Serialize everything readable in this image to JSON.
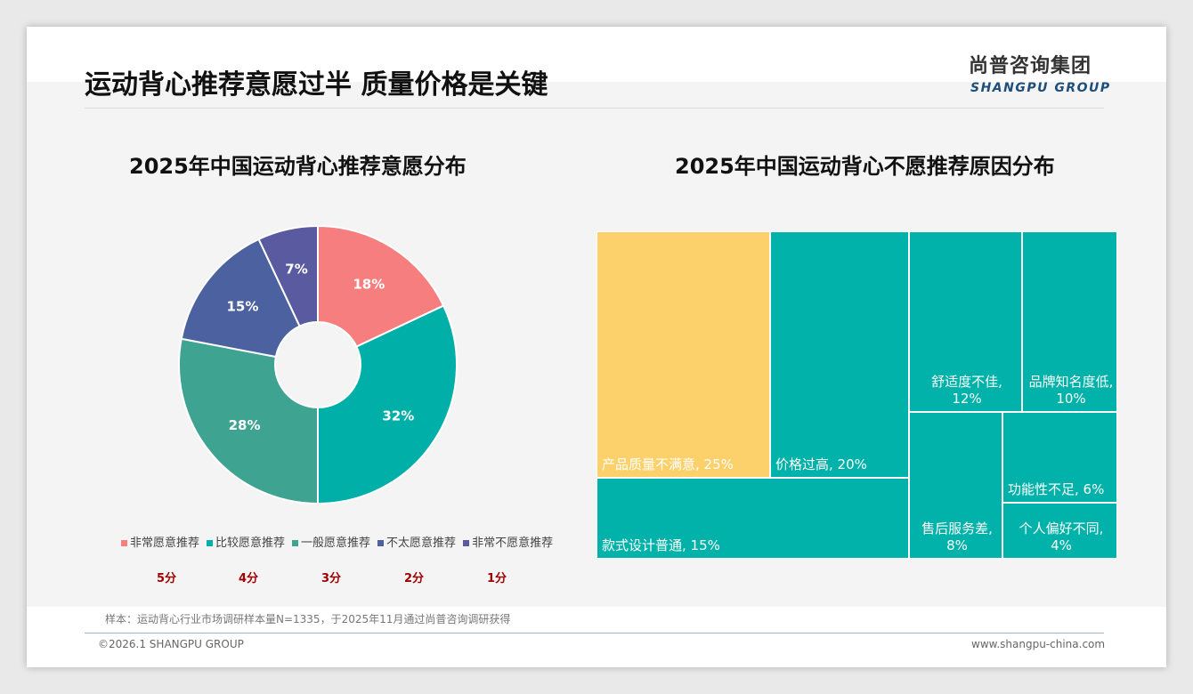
{
  "header": {
    "title": "运动背心推荐意愿过半 质量价格是关键",
    "logo_cn": "尚普咨询集团",
    "logo_en": "SHANGPU GROUP"
  },
  "footer": {
    "note": "样本：运动背心行业市场调研样本量N=1335，于2025年11月通过尚普咨询调研获得",
    "copyright": "©2026.1 SHANGPU GROUP",
    "url": "www.shangpu-china.com"
  },
  "chart_data": [
    {
      "type": "pie",
      "title": "2025年中国运动背心推荐意愿分布",
      "donut": true,
      "categories": [
        "非常愿意推荐",
        "比较愿意推荐",
        "一般愿意推荐",
        "不太愿意推荐",
        "非常不愿意推荐"
      ],
      "values": [
        18,
        32,
        28,
        15,
        7
      ],
      "labels": [
        "18%",
        "32%",
        "28%",
        "15%",
        "7%"
      ],
      "scores": [
        "5分",
        "4分",
        "3分",
        "2分",
        "1分"
      ],
      "colors": [
        "#F77E7E",
        "#00AFA7",
        "#3FA392",
        "#4C62A0",
        "#5A5AA0"
      ]
    },
    {
      "type": "treemap",
      "title": "2025年中国运动背心不愿推荐原因分布",
      "items": [
        {
          "name": "产品质量不满意",
          "value": 25,
          "label": "产品质量不满意, 25%",
          "color": "#FCD06A"
        },
        {
          "name": "价格过高",
          "value": 20,
          "label": "价格过高, 20%",
          "color": "#00B2A9"
        },
        {
          "name": "款式设计普通",
          "value": 15,
          "label": "款式设计普通, 15%",
          "color": "#00B2A9"
        },
        {
          "name": "舒适度不佳",
          "value": 12,
          "label": "舒适度不佳,",
          "label2": "12%",
          "color": "#00B2A9"
        },
        {
          "name": "品牌知名度低",
          "value": 10,
          "label": "品牌知名度低,",
          "label2": "10%",
          "color": "#00B2A9"
        },
        {
          "name": "售后服务差",
          "value": 8,
          "label": "售后服务差,",
          "label2": "8%",
          "color": "#00B2A9"
        },
        {
          "name": "功能性不足",
          "value": 6,
          "label": "功能性不足, 6%",
          "color": "#00B2A9"
        },
        {
          "name": "个人偏好不同",
          "value": 4,
          "label": "个人偏好不同,",
          "label2": "4%",
          "color": "#00B2A9"
        }
      ]
    }
  ]
}
